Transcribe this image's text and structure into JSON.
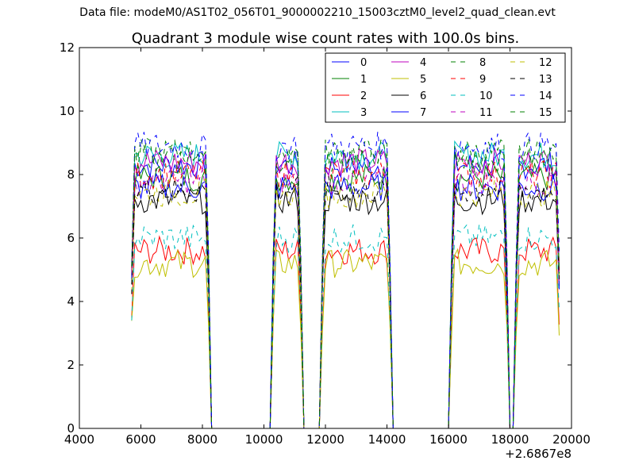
{
  "figure_title": "Data file: modeM0/AS1T02_056T01_9000002210_15003cztM0_level2_quad_clean.evt",
  "chart_data": {
    "type": "line",
    "title": "Quadrant 3 module wise count rates with 100.0s bins.",
    "xlabel": "",
    "ylabel": "",
    "x_offset_label": "+2.6867e8",
    "xlim": [
      4000,
      20000
    ],
    "ylim": [
      0,
      12
    ],
    "xticks": [
      4000,
      6000,
      8000,
      10000,
      12000,
      14000,
      16000,
      18000,
      20000
    ],
    "yticks": [
      0,
      2,
      4,
      6,
      8,
      10,
      12
    ],
    "grid": false,
    "legend_position": "top-right",
    "legend_columns": 4,
    "x_range_note": "100 s bins, offsets from 268670000",
    "active_intervals": [
      [
        5700,
        8200
      ],
      [
        10300,
        11200
      ],
      [
        11900,
        14100
      ],
      [
        16100,
        17900
      ],
      [
        18200,
        19600
      ]
    ],
    "series": [
      {
        "name": "0",
        "color": "#0000ff",
        "style": "solid",
        "level": 8.3
      },
      {
        "name": "1",
        "color": "#008000",
        "style": "solid",
        "level": 7.9
      },
      {
        "name": "2",
        "color": "#ff0000",
        "style": "solid",
        "level": 5.6
      },
      {
        "name": "3",
        "color": "#00bfbf",
        "style": "solid",
        "level": 8.6
      },
      {
        "name": "4",
        "color": "#bf00bf",
        "style": "solid",
        "level": 8.4
      },
      {
        "name": "5",
        "color": "#bfbf00",
        "style": "solid",
        "level": 5.2
      },
      {
        "name": "6",
        "color": "#000000",
        "style": "solid",
        "level": 7.2
      },
      {
        "name": "7",
        "color": "#0000ff",
        "style": "solid",
        "level": 7.6
      },
      {
        "name": "8",
        "color": "#008000",
        "style": "dashed",
        "level": 8.7
      },
      {
        "name": "9",
        "color": "#ff0000",
        "style": "dashed",
        "level": 8.0
      },
      {
        "name": "10",
        "color": "#00bfbf",
        "style": "dashed",
        "level": 6.0
      },
      {
        "name": "11",
        "color": "#bf00bf",
        "style": "dashed",
        "level": 7.8
      },
      {
        "name": "12",
        "color": "#bfbf00",
        "style": "dashed",
        "level": 7.4
      },
      {
        "name": "13",
        "color": "#000000",
        "style": "dashed",
        "level": 7.5
      },
      {
        "name": "14",
        "color": "#0000ff",
        "style": "dashed",
        "level": 8.9
      },
      {
        "name": "15",
        "color": "#008000",
        "style": "dashed",
        "level": 8.5
      }
    ]
  }
}
